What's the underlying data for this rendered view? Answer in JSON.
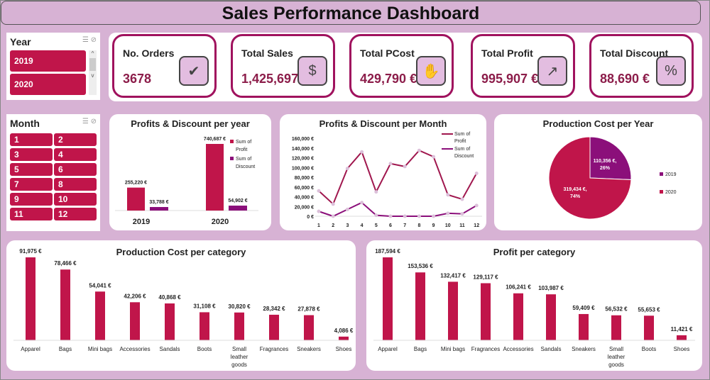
{
  "title": "Sales Performance Dashboard",
  "colors": {
    "profit": "#c0154a",
    "discount": "#8b0f7a",
    "background": "#d7b2d4"
  },
  "year_slicer": {
    "label": "Year",
    "items": [
      "2019",
      "2020"
    ]
  },
  "month_slicer": {
    "label": "Month",
    "items": [
      "1",
      "2",
      "3",
      "4",
      "5",
      "6",
      "7",
      "8",
      "9",
      "10",
      "11",
      "12"
    ]
  },
  "kpis": [
    {
      "label": "No. Orders",
      "value": "3678",
      "icon": "package-check-icon"
    },
    {
      "label": "Total Sales",
      "value": "1,425,697 €",
      "icon": "money-bag-icon"
    },
    {
      "label": "Total PCost",
      "value": "429,790 €",
      "icon": "hand-coin-icon"
    },
    {
      "label": "Total Profit",
      "value": "995,907 €",
      "icon": "growth-chart-icon"
    },
    {
      "label": "Total Discount",
      "value": "88,690 €",
      "icon": "percent-badge-icon"
    }
  ],
  "chart_data": [
    {
      "id": "year",
      "type": "bar",
      "title": "Profits & Discount per year",
      "categories": [
        "2019",
        "2020"
      ],
      "series": [
        {
          "name": "Sum of Profit",
          "values": [
            255220,
            740687
          ],
          "labels": [
            "255,220 €",
            "740,687 €"
          ]
        },
        {
          "name": "Sum of Discount",
          "values": [
            33788,
            54902
          ],
          "labels": [
            "33,788 €",
            "54,902 €"
          ]
        }
      ],
      "legend": "right"
    },
    {
      "id": "month",
      "type": "line",
      "title": "Profits & Discount per Month",
      "categories": [
        "1",
        "2",
        "3",
        "4",
        "5",
        "6",
        "7",
        "8",
        "9",
        "10",
        "11",
        "12"
      ],
      "yticks": [
        "0 €",
        "20,000 €",
        "40,000 €",
        "60,000 €",
        "80,000 €",
        "100,000 €",
        "120,000 €",
        "140,000 €",
        "160,000 €"
      ],
      "ylim": [
        0,
        160000
      ],
      "series": [
        {
          "name": "Sum of Profit",
          "values": [
            52000,
            25000,
            98000,
            132000,
            50000,
            108000,
            102000,
            135000,
            122000,
            44000,
            35000,
            88000
          ]
        },
        {
          "name": "Sum of Discount",
          "values": [
            10000,
            0,
            14000,
            28000,
            2000,
            0,
            0,
            0,
            0,
            6000,
            5000,
            22000
          ]
        }
      ],
      "legend": "top-right"
    },
    {
      "id": "pie",
      "type": "pie",
      "title": "Production Cost per Year",
      "categories": [
        "2019",
        "2020"
      ],
      "values": [
        110356,
        319434
      ],
      "labels": [
        "110,356 €, 26%",
        "319,434 €, 74%"
      ],
      "legend": "right"
    },
    {
      "id": "pcat",
      "type": "bar",
      "title": "Production Cost per category",
      "categories": [
        "Apparel",
        "Bags",
        "Mini bags",
        "Accessories",
        "Sandals",
        "Boots",
        "Small leather goods",
        "Fragrances",
        "Sneakers",
        "Shoes"
      ],
      "values": [
        91975,
        78466,
        54041,
        42206,
        40868,
        31108,
        30820,
        28342,
        27878,
        4086
      ],
      "labels": [
        "91,975 €",
        "78,466 €",
        "54,041 €",
        "42,206 €",
        "40,868 €",
        "31,108 €",
        "30,820 €",
        "28,342 €",
        "27,878 €",
        "4,086 €"
      ]
    },
    {
      "id": "prcat",
      "type": "bar",
      "title": "Profit per category",
      "categories": [
        "Apparel",
        "Bags",
        "Mini bags",
        "Fragrances",
        "Accessories",
        "Sandals",
        "Sneakers",
        "Small leather goods",
        "Boots",
        "Shoes"
      ],
      "values": [
        187594,
        153536,
        132417,
        129117,
        106241,
        103987,
        59409,
        56532,
        55653,
        11421
      ],
      "labels": [
        "187,594 €",
        "153,536 €",
        "132,417 €",
        "129,117 €",
        "106,241 €",
        "103,987 €",
        "59,409 €",
        "56,532 €",
        "55,653 €",
        "11,421 €"
      ]
    }
  ]
}
